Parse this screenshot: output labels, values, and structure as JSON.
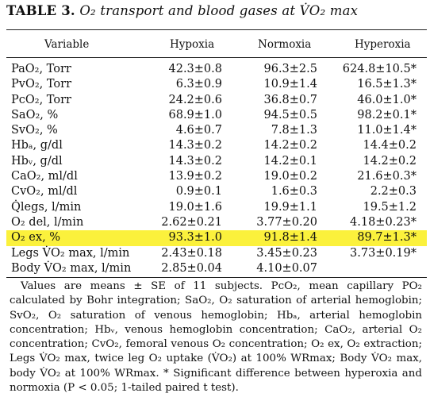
{
  "title": {
    "label": "TABLE 3.",
    "caption": "O₂ transport and blood gases at V̇O₂ max"
  },
  "headers": [
    "Variable",
    "Hypoxia",
    "Normoxia",
    "Hyperoxia"
  ],
  "rows": [
    {
      "variable": "PaO₂, Torr",
      "hypoxia": "42.3±0.8",
      "normoxia": "96.3±2.5",
      "hyperoxia": "624.8±10.5*"
    },
    {
      "variable": "PvO₂, Torr",
      "hypoxia": "6.3±0.9",
      "normoxia": "10.9±1.4",
      "hyperoxia": "16.5±1.3*"
    },
    {
      "variable": "PcO₂, Torr",
      "hypoxia": "24.2±0.6",
      "normoxia": "36.8±0.7",
      "hyperoxia": "46.0±1.0*"
    },
    {
      "variable": "SaO₂, %",
      "hypoxia": "68.9±1.0",
      "normoxia": "94.5±0.5",
      "hyperoxia": "98.2±0.1*"
    },
    {
      "variable": "SvO₂, %",
      "hypoxia": "4.6±0.7",
      "normoxia": "7.8±1.3",
      "hyperoxia": "11.0±1.4*"
    },
    {
      "variable": "Hbₐ, g/dl",
      "hypoxia": "14.3±0.2",
      "normoxia": "14.2±0.2",
      "hyperoxia": "14.4±0.2"
    },
    {
      "variable": "Hbᵥ, g/dl",
      "hypoxia": "14.3±0.2",
      "normoxia": "14.2±0.1",
      "hyperoxia": "14.2±0.2"
    },
    {
      "variable": "CaO₂, ml/dl",
      "hypoxia": "13.9±0.2",
      "normoxia": "19.0±0.2",
      "hyperoxia": "21.6±0.3*"
    },
    {
      "variable": "CvO₂, ml/dl",
      "hypoxia": "0.9±0.1",
      "normoxia": "1.6±0.3",
      "hyperoxia": "2.2±0.3"
    },
    {
      "variable": "Q̇legs, l/min",
      "hypoxia": "19.0±1.6",
      "normoxia": "19.9±1.1",
      "hyperoxia": "19.5±1.2"
    },
    {
      "variable": "O₂ del, l/min",
      "hypoxia": "2.62±0.21",
      "normoxia": "3.77±0.20",
      "hyperoxia": "4.18±0.23*"
    },
    {
      "variable": "O₂ ex, %",
      "hypoxia": "93.3±1.0",
      "normoxia": "91.8±1.4",
      "hyperoxia": "89.7±1.3*"
    },
    {
      "variable": "Legs V̇O₂ max, l/min",
      "hypoxia": "2.43±0.18",
      "normoxia": "3.45±0.23",
      "hyperoxia": "3.73±0.19*"
    },
    {
      "variable": "Body V̇O₂ max, l/min",
      "hypoxia": "2.85±0.04",
      "normoxia": "4.10±0.07",
      "hyperoxia": ""
    }
  ],
  "highlight_color": "#fbf13c",
  "footnote": "Values are means ± SE of 11 subjects. PcO₂, mean capillary PO₂ calculated by Bohr integration; SaO₂, O₂ saturation of arterial hemoglobin; SvO₂, O₂ saturation of venous hemoglobin; Hbₐ, arterial hemoglobin concentration; Hbᵥ, venous hemoglobin concentration; CaO₂, arterial O₂ concentration; CvO₂, femoral venous O₂ concentration; O₂ ex, O₂ extraction; Legs V̇O₂ max, twice leg O₂ uptake (V̇O₂) at 100% WRmax; Body V̇O₂ max, body V̇O₂ at 100% WRmax. * Significant difference between hyperoxia and normoxia (P < 0.05; 1-tailed paired t test)."
}
